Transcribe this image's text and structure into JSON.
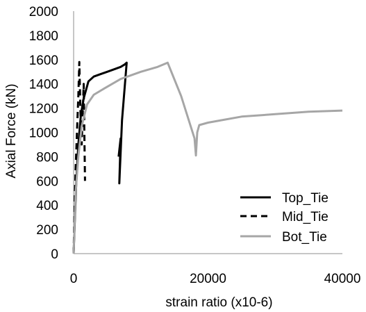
{
  "chart_data": {
    "type": "line",
    "title": "",
    "xlabel": "strain ratio (x10-6)",
    "ylabel": "Axial Force (kN)",
    "xlim": [
      0,
      40000
    ],
    "ylim": [
      0,
      2000
    ],
    "x_ticks": [
      0,
      20000,
      40000
    ],
    "y_ticks": [
      0,
      200,
      400,
      600,
      800,
      1000,
      1200,
      1400,
      1600,
      1800,
      2000
    ],
    "grid": false,
    "legend_position": "bottom-right",
    "series": [
      {
        "name": "Top_Tie",
        "color": "#000000",
        "dash": "solid",
        "points": [
          [
            0,
            0
          ],
          [
            200,
            300
          ],
          [
            400,
            600
          ],
          [
            700,
            900
          ],
          [
            1100,
            1150
          ],
          [
            1500,
            1280
          ],
          [
            2200,
            1420
          ],
          [
            3000,
            1460
          ],
          [
            4000,
            1480
          ],
          [
            5000,
            1500
          ],
          [
            6000,
            1520
          ],
          [
            7000,
            1540
          ],
          [
            7600,
            1560
          ],
          [
            7900,
            1575
          ],
          [
            7200,
            1100
          ],
          [
            6800,
            580
          ],
          [
            7000,
            950
          ],
          [
            6700,
            800
          ]
        ]
      },
      {
        "name": "Mid_Tie",
        "color": "#000000",
        "dash": "dashed",
        "points": [
          [
            0,
            0
          ],
          [
            150,
            400
          ],
          [
            300,
            700
          ],
          [
            500,
            1000
          ],
          [
            700,
            1300
          ],
          [
            850,
            1580
          ],
          [
            1000,
            1200
          ],
          [
            1200,
            900
          ],
          [
            1500,
            1400
          ],
          [
            1700,
            600
          ]
        ]
      },
      {
        "name": "Bot_Tie",
        "color": "#a6a6a6",
        "dash": "solid",
        "points": [
          [
            0,
            0
          ],
          [
            300,
            500
          ],
          [
            700,
            800
          ],
          [
            1200,
            1050
          ],
          [
            2000,
            1230
          ],
          [
            3000,
            1310
          ],
          [
            4500,
            1360
          ],
          [
            7000,
            1440
          ],
          [
            10000,
            1500
          ],
          [
            12500,
            1540
          ],
          [
            14000,
            1575
          ],
          [
            16000,
            1300
          ],
          [
            18000,
            950
          ],
          [
            18200,
            810
          ],
          [
            18400,
            1000
          ],
          [
            18700,
            1060
          ],
          [
            20000,
            1080
          ],
          [
            22000,
            1100
          ],
          [
            25000,
            1130
          ],
          [
            30000,
            1150
          ],
          [
            35000,
            1170
          ],
          [
            40000,
            1180
          ]
        ]
      }
    ]
  }
}
